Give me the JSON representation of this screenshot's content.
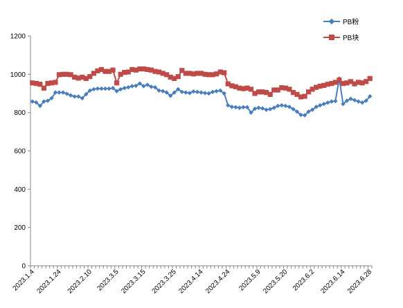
{
  "chart_data": {
    "type": "line",
    "title": "",
    "xlabel": "",
    "ylabel": "",
    "ylim": [
      0,
      1200
    ],
    "yticks": [
      0,
      200,
      400,
      600,
      800,
      1000,
      1200
    ],
    "grid": false,
    "legend_position": "top-right",
    "x_tick_labels": [
      "2023.1.4",
      "2023.1.24",
      "2023.2.10",
      "2023.3.5",
      "2023.3.15",
      "2023.3.25",
      "2023.4.14",
      "2023.4.24",
      "2023.5.9",
      "2023.5.20",
      "2023.6.2",
      "2023.6.14",
      "2023.6.28"
    ],
    "series": [
      {
        "name": "PB粉",
        "color": "#4a7ebb",
        "marker": "diamond",
        "values": [
          858,
          853,
          835,
          858,
          862,
          875,
          905,
          905,
          905,
          898,
          890,
          884,
          884,
          875,
          896,
          915,
          922,
          925,
          925,
          925,
          925,
          928,
          912,
          922,
          928,
          932,
          938,
          940,
          952,
          938,
          945,
          935,
          932,
          915,
          912,
          905,
          888,
          905,
          922,
          908,
          905,
          902,
          910,
          908,
          905,
          902,
          900,
          908,
          912,
          915,
          900,
          838,
          830,
          828,
          825,
          828,
          828,
          800,
          820,
          825,
          822,
          815,
          818,
          825,
          835,
          838,
          835,
          830,
          818,
          805,
          788,
          786,
          805,
          815,
          830,
          838,
          845,
          852,
          858,
          860,
          978,
          845,
          862,
          872,
          865,
          858,
          852,
          862,
          885
        ]
      },
      {
        "name": "PB块",
        "color": "#be4b48",
        "marker": "square",
        "values": [
          955,
          952,
          948,
          928,
          952,
          955,
          958,
          998,
          1000,
          1000,
          998,
          985,
          980,
          985,
          978,
          988,
          1005,
          1018,
          1025,
          1015,
          1015,
          1022,
          955,
          1000,
          1010,
          1012,
          1025,
          1022,
          1028,
          1028,
          1025,
          1022,
          1015,
          1012,
          1005,
          998,
          985,
          978,
          988,
          1020,
          1005,
          1005,
          1002,
          1005,
          1005,
          1000,
          998,
          998,
          1002,
          1012,
          1008,
          950,
          940,
          935,
          928,
          925,
          928,
          922,
          900,
          908,
          908,
          905,
          895,
          918,
          918,
          930,
          928,
          922,
          905,
          895,
          882,
          885,
          908,
          922,
          932,
          938,
          942,
          948,
          952,
          958,
          970,
          952,
          955,
          962,
          950,
          958,
          955,
          962,
          978
        ]
      }
    ]
  }
}
